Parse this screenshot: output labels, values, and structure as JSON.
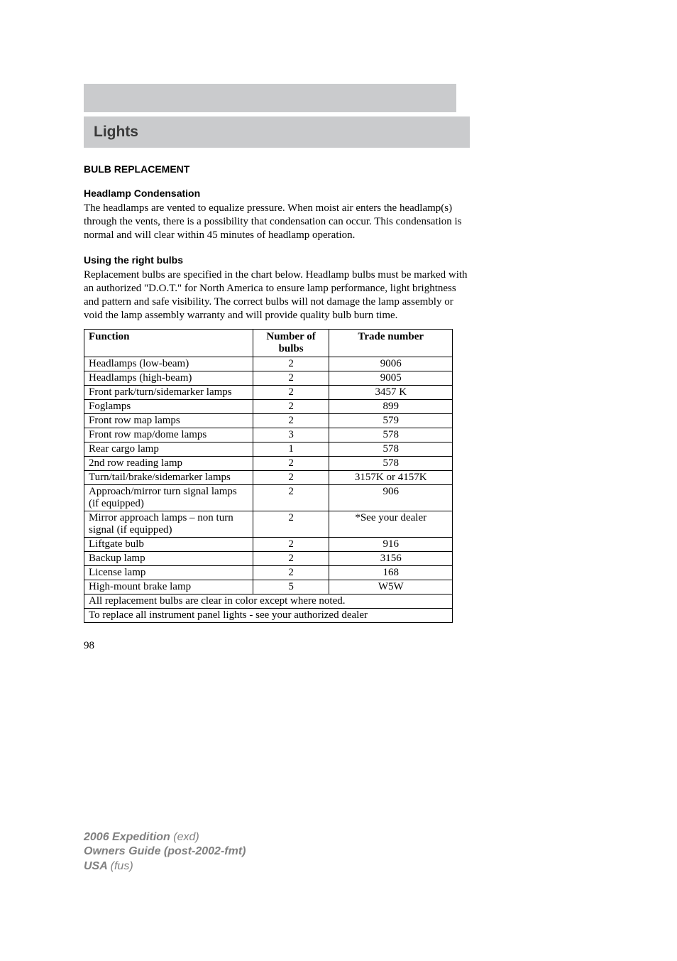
{
  "header": {
    "title": "Lights"
  },
  "section1": {
    "title": "BULB REPLACEMENT"
  },
  "section2": {
    "title": "Headlamp Condensation",
    "para": "The headlamps are vented to equalize pressure. When moist air enters the headlamp(s) through the vents, there is a possibility that condensation can occur. This condensation is normal and will clear within 45 minutes of headlamp operation."
  },
  "section3": {
    "title": "Using the right bulbs",
    "para": "Replacement bulbs are specified in the chart below. Headlamp bulbs must be marked with an authorized \"D.O.T.\" for North America to ensure lamp performance, light brightness and pattern and safe visibility. The correct bulbs will not damage the lamp assembly or void the lamp assembly warranty and will provide quality bulb burn time."
  },
  "table": {
    "headers": {
      "func": "Function",
      "num": "Number of bulbs",
      "trade": "Trade number"
    },
    "rows": [
      {
        "func": "Headlamps (low-beam)",
        "num": "2",
        "trade": "9006"
      },
      {
        "func": "Headlamps (high-beam)",
        "num": "2",
        "trade": "9005"
      },
      {
        "func": "Front park/turn/sidemarker lamps",
        "num": "2",
        "trade": "3457 K"
      },
      {
        "func": "Foglamps",
        "num": "2",
        "trade": "899"
      },
      {
        "func": "Front row map lamps",
        "num": "2",
        "trade": "579"
      },
      {
        "func": "Front row map/dome lamps",
        "num": "3",
        "trade": "578"
      },
      {
        "func": "Rear cargo lamp",
        "num": "1",
        "trade": "578"
      },
      {
        "func": "2nd row reading lamp",
        "num": "2",
        "trade": "578"
      },
      {
        "func": "Turn/tail/brake/sidemarker lamps",
        "num": "2",
        "trade": "3157K or 4157K"
      },
      {
        "func": "Approach/mirror turn signal lamps (if equipped)",
        "num": "2",
        "trade": "906"
      },
      {
        "func": "Mirror approach lamps – non turn signal (if equipped)",
        "num": "2",
        "trade": "*See your dealer"
      },
      {
        "func": "Liftgate bulb",
        "num": "2",
        "trade": "916"
      },
      {
        "func": "Backup lamp",
        "num": "2",
        "trade": "3156"
      },
      {
        "func": "License lamp",
        "num": "2",
        "trade": "168"
      },
      {
        "func": "High-mount brake lamp",
        "num": "5",
        "trade": "W5W"
      }
    ],
    "note1": "All replacement bulbs are clear in color except where noted.",
    "note2": "To replace all instrument panel lights - see your authorized dealer"
  },
  "pageNumber": "98",
  "footer": {
    "line1a": "2006 Expedition ",
    "line1b": "(exd)",
    "line2": "Owners Guide (post-2002-fmt)",
    "line3a": "USA ",
    "line3b": "(fus)"
  }
}
